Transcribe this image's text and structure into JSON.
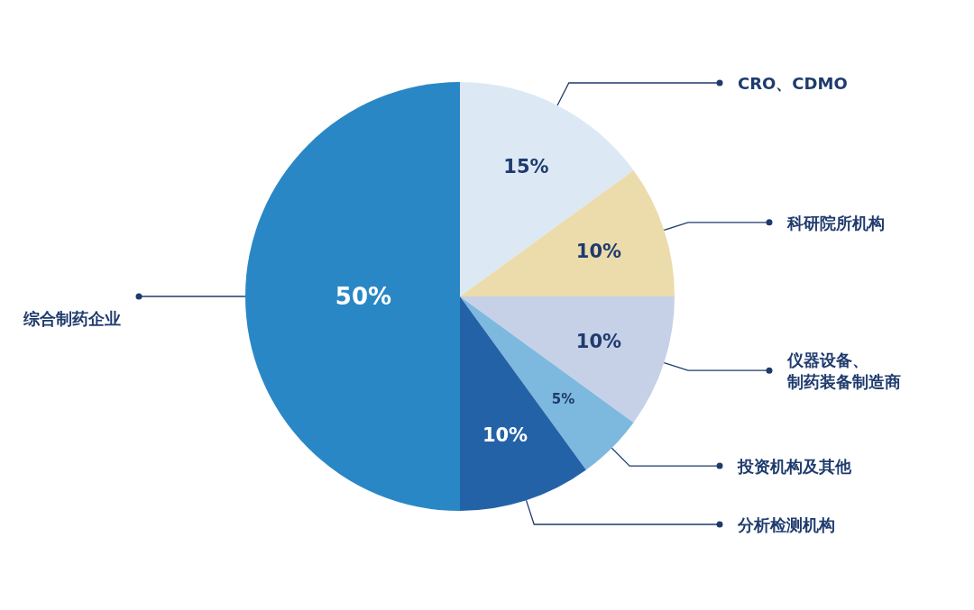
{
  "chart_data": {
    "type": "pie",
    "categories": [
      "CRO、CDMO",
      "科研院所机构",
      "仪器设备、制药装备制造商",
      "投资机构及其他",
      "分析检测机构",
      "综合制药企业"
    ],
    "values": [
      15,
      10,
      10,
      5,
      10,
      50
    ],
    "colors": [
      "#dce9f5",
      "#ecdcab",
      "#c6d1e7",
      "#7db9de",
      "#2462a8",
      "#2a87c6"
    ],
    "value_labels": [
      "15%",
      "10%",
      "10%",
      "5%",
      "10%",
      "50%"
    ]
  }
}
